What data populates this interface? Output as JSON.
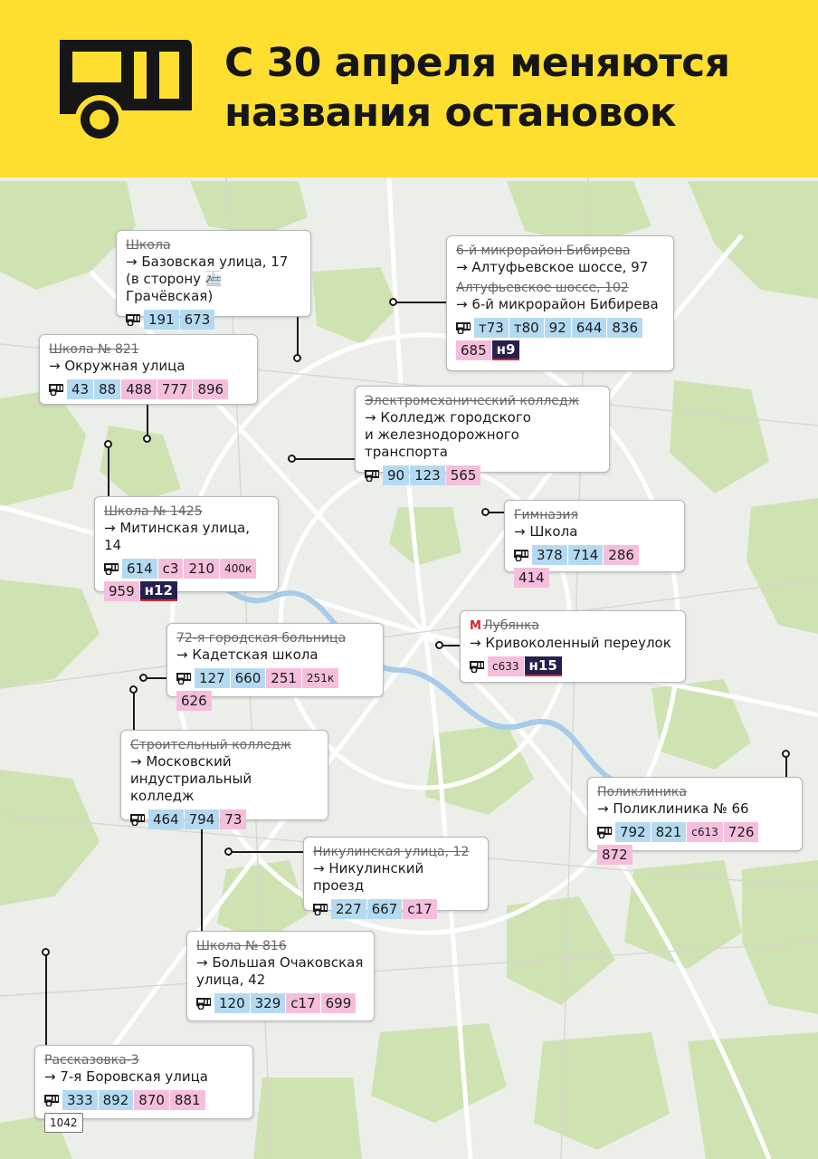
{
  "header": {
    "title_line1": "С 30 апреля меняются",
    "title_line2": "названия остановок"
  },
  "stops": [
    {
      "old": "Школа",
      "new": "→ Базовская улица, 17\n(в сторону 🚈 Грачёвская)",
      "routes": [
        {
          "n": "191",
          "c": "blue"
        },
        {
          "n": "673",
          "c": "blue"
        }
      ]
    },
    {
      "old": "6-й микрорайон Бибирева",
      "new": "→ Алтуфьевское шоссе, 97",
      "old2": "Алтуфьевское шоссе, 102",
      "new2": "→ 6-й микрорайон Бибирева",
      "routes": [
        {
          "n": "т73",
          "c": "blue"
        },
        {
          "n": "т80",
          "c": "blue"
        },
        {
          "n": "92",
          "c": "blue"
        },
        {
          "n": "644",
          "c": "blue"
        },
        {
          "n": "836",
          "c": "blue"
        },
        {
          "n": "685",
          "c": "pink"
        },
        {
          "n": "н9",
          "c": "dark"
        }
      ]
    },
    {
      "old": "Школа № 821",
      "new": "→ Окружная улица",
      "routes": [
        {
          "n": "43",
          "c": "blue"
        },
        {
          "n": "88",
          "c": "blue"
        },
        {
          "n": "488",
          "c": "pink"
        },
        {
          "n": "777",
          "c": "pink"
        },
        {
          "n": "896",
          "c": "pink"
        }
      ]
    },
    {
      "old": "Электромеханический колледж",
      "new": "→ Колледж городского\nи железнодорожного транспорта",
      "routes": [
        {
          "n": "90",
          "c": "blue"
        },
        {
          "n": "123",
          "c": "blue"
        },
        {
          "n": "565",
          "c": "pink"
        }
      ]
    },
    {
      "old": "Школа № 1425",
      "new": "→ Митинская улица, 14",
      "routes": [
        {
          "n": "614",
          "c": "blue"
        },
        {
          "n": "с3",
          "c": "pink"
        },
        {
          "n": "210",
          "c": "pink"
        },
        {
          "n": "400к",
          "c": "pink",
          "small": true
        },
        {
          "n": "959",
          "c": "pink"
        },
        {
          "n": "н12",
          "c": "dark"
        }
      ]
    },
    {
      "old": "Гимназия",
      "new": "→ Школа",
      "routes": [
        {
          "n": "378",
          "c": "blue"
        },
        {
          "n": "714",
          "c": "blue"
        },
        {
          "n": "286",
          "c": "pink"
        },
        {
          "n": "414",
          "c": "pink"
        }
      ]
    },
    {
      "old": "Лубянка",
      "metro": true,
      "new": "→ Кривоколенный переулок",
      "routes": [
        {
          "n": "с633",
          "c": "pink",
          "small": true
        },
        {
          "n": "н15",
          "c": "dark"
        }
      ]
    },
    {
      "old": "72-я городская больница",
      "new": "→ Кадетская школа",
      "routes": [
        {
          "n": "127",
          "c": "blue"
        },
        {
          "n": "660",
          "c": "blue"
        },
        {
          "n": "251",
          "c": "pink"
        },
        {
          "n": "251к",
          "c": "pink",
          "small": true
        },
        {
          "n": "626",
          "c": "pink"
        }
      ]
    },
    {
      "old": "Строительный колледж",
      "new": "→ Московский\nиндустриальный колледж",
      "routes": [
        {
          "n": "464",
          "c": "blue"
        },
        {
          "n": "794",
          "c": "blue"
        },
        {
          "n": "73",
          "c": "pink"
        }
      ]
    },
    {
      "old": "Поликлиника",
      "new": "→ Поликлиника № 66",
      "routes": [
        {
          "n": "792",
          "c": "blue"
        },
        {
          "n": "821",
          "c": "blue"
        },
        {
          "n": "с613",
          "c": "pink",
          "small": true
        },
        {
          "n": "726",
          "c": "pink"
        },
        {
          "n": "872",
          "c": "pink"
        }
      ]
    },
    {
      "old": "Никулинская улица, 12",
      "new": "→ Никулинский проезд",
      "routes": [
        {
          "n": "227",
          "c": "blue"
        },
        {
          "n": "667",
          "c": "blue"
        },
        {
          "n": "с17",
          "c": "pink"
        }
      ]
    },
    {
      "old": "Школа № 816",
      "new": "→ Большая Очаковская\nулица, 42",
      "routes": [
        {
          "n": "120",
          "c": "blue"
        },
        {
          "n": "329",
          "c": "blue"
        },
        {
          "n": "с17",
          "c": "pink"
        },
        {
          "n": "699",
          "c": "pink"
        }
      ]
    },
    {
      "old": "Рассказовка-3",
      "new": "→ 7-я Боровская улица",
      "routes": [
        {
          "n": "333",
          "c": "blue"
        },
        {
          "n": "892",
          "c": "blue"
        },
        {
          "n": "870",
          "c": "pink"
        },
        {
          "n": "881",
          "c": "pink"
        },
        {
          "n": "1042",
          "c": "box"
        }
      ]
    }
  ]
}
